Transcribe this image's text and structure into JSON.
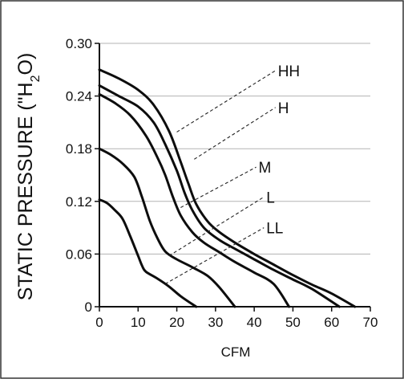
{
  "chart_data": {
    "type": "line",
    "title": "",
    "xlabel": "CFM",
    "ylabel": "STATIC PRESSURE (\"H",
    "ylabel_sub": "2",
    "ylabel_tail": "O)",
    "xlim": [
      0,
      70
    ],
    "ylim": [
      0,
      0.3
    ],
    "x_ticks": [
      0,
      10,
      20,
      30,
      40,
      50,
      60,
      70
    ],
    "y_ticks": [
      {
        "value": 0,
        "label": "0"
      },
      {
        "value": 0.06,
        "label": "0.06"
      },
      {
        "value": 0.12,
        "label": "0.12"
      },
      {
        "value": 0.18,
        "label": "0.18"
      },
      {
        "value": 0.24,
        "label": "0.24"
      },
      {
        "value": 0.3,
        "label": "0.30"
      }
    ],
    "grid": "horizontal",
    "series": [
      {
        "name": "HH",
        "points": [
          [
            0,
            0.27
          ],
          [
            5,
            0.26
          ],
          [
            10,
            0.247
          ],
          [
            14,
            0.23
          ],
          [
            18,
            0.2
          ],
          [
            21,
            0.165
          ],
          [
            23,
            0.14
          ],
          [
            25,
            0.117
          ],
          [
            28,
            0.097
          ],
          [
            31,
            0.085
          ],
          [
            35,
            0.073
          ],
          [
            40,
            0.06
          ],
          [
            45,
            0.048
          ],
          [
            50,
            0.036
          ],
          [
            55,
            0.025
          ],
          [
            60,
            0.015
          ],
          [
            66,
            0.0
          ]
        ],
        "callout_at": [
          20,
          0.199
        ]
      },
      {
        "name": "H",
        "points": [
          [
            0,
            0.252
          ],
          [
            5,
            0.24
          ],
          [
            10,
            0.228
          ],
          [
            14,
            0.21
          ],
          [
            17,
            0.185
          ],
          [
            20,
            0.155
          ],
          [
            22,
            0.13
          ],
          [
            24,
            0.11
          ],
          [
            27,
            0.09
          ],
          [
            31,
            0.076
          ],
          [
            35,
            0.066
          ],
          [
            40,
            0.054
          ],
          [
            45,
            0.042
          ],
          [
            50,
            0.031
          ],
          [
            55,
            0.02
          ],
          [
            62,
            0.0
          ]
        ],
        "callout_at": [
          24.5,
          0.168
        ]
      },
      {
        "name": "M",
        "points": [
          [
            0,
            0.242
          ],
          [
            4,
            0.232
          ],
          [
            8,
            0.218
          ],
          [
            12,
            0.195
          ],
          [
            15,
            0.17
          ],
          [
            17,
            0.15
          ],
          [
            19,
            0.125
          ],
          [
            21,
            0.104
          ],
          [
            24,
            0.085
          ],
          [
            27,
            0.073
          ],
          [
            31,
            0.062
          ],
          [
            35,
            0.051
          ],
          [
            40,
            0.039
          ],
          [
            45,
            0.026
          ],
          [
            49,
            0.0
          ]
        ],
        "callout_at": [
          21,
          0.113
        ]
      },
      {
        "name": "L",
        "points": [
          [
            0,
            0.18
          ],
          [
            3,
            0.173
          ],
          [
            6,
            0.163
          ],
          [
            9,
            0.148
          ],
          [
            11,
            0.125
          ],
          [
            13,
            0.098
          ],
          [
            15,
            0.078
          ],
          [
            17,
            0.063
          ],
          [
            20,
            0.054
          ],
          [
            24,
            0.045
          ],
          [
            28,
            0.035
          ],
          [
            31,
            0.022
          ],
          [
            35,
            0.0
          ]
        ],
        "callout_at": [
          18,
          0.058
        ]
      },
      {
        "name": "LL",
        "points": [
          [
            0,
            0.122
          ],
          [
            2,
            0.118
          ],
          [
            4,
            0.11
          ],
          [
            6,
            0.1
          ],
          [
            8,
            0.08
          ],
          [
            10,
            0.058
          ],
          [
            11,
            0.047
          ],
          [
            12,
            0.04
          ],
          [
            15,
            0.032
          ],
          [
            18,
            0.023
          ],
          [
            21,
            0.012
          ],
          [
            25,
            0.0
          ]
        ],
        "callout_at": [
          17,
          0.026
        ]
      }
    ],
    "callout_labels": [
      {
        "series": "HH",
        "label": "HH",
        "end": [
          45.5,
          0.269
        ]
      },
      {
        "series": "H",
        "label": "H",
        "end": [
          45.5,
          0.227
        ]
      },
      {
        "series": "M",
        "label": "M",
        "end": [
          40.5,
          0.159
        ]
      },
      {
        "series": "L",
        "label": "L",
        "end": [
          42.5,
          0.125
        ]
      },
      {
        "series": "LL",
        "label": "LL",
        "end": [
          42.5,
          0.09
        ]
      }
    ]
  }
}
